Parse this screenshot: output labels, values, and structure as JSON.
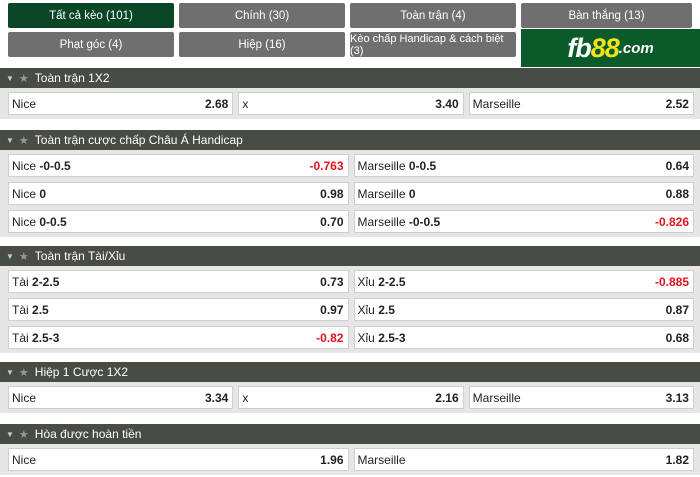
{
  "tabs": [
    {
      "label": "Tất cả kèo (101)",
      "active": true
    },
    {
      "label": "Chính (30)"
    },
    {
      "label": "Toàn trận (4)"
    },
    {
      "label": "Bàn thắng (13)"
    },
    {
      "label": "Phạt góc (4)"
    },
    {
      "label": "Hiệp (16)"
    },
    {
      "label": "Kèo chấp Handicap & cách biệt (3)"
    }
  ],
  "logo": {
    "a": "fb",
    "b": "88",
    ".com": ".com"
  },
  "colors": {
    "header": "#474c45",
    "active_tab": "#0b4727",
    "tab": "#6f6f6f",
    "negative": "#e0141e",
    "logo_bg": "#0b5a2a"
  },
  "sections": [
    {
      "title": "Toàn trận 1X2",
      "rows": [
        [
          {
            "label": "Nice",
            "line": "",
            "odds": "2.68"
          },
          {
            "label": "x",
            "line": "",
            "odds": "3.40"
          },
          {
            "label": "Marseille",
            "line": "",
            "odds": "2.52"
          }
        ]
      ]
    },
    {
      "title": "Toàn trận cược chấp Châu Á Handicap",
      "rows": [
        [
          {
            "label": "Nice",
            "line": "-0-0.5",
            "odds": "-0.763"
          },
          {
            "label": "Marseille",
            "line": "0-0.5",
            "odds": "0.64"
          }
        ],
        [
          {
            "label": "Nice",
            "line": "0",
            "odds": "0.98"
          },
          {
            "label": "Marseille",
            "line": "0",
            "odds": "0.88"
          }
        ],
        [
          {
            "label": "Nice",
            "line": "0-0.5",
            "odds": "0.70"
          },
          {
            "label": "Marseille",
            "line": "-0-0.5",
            "odds": "-0.826"
          }
        ]
      ]
    },
    {
      "title": "Toàn trận Tài/Xỉu",
      "rows": [
        [
          {
            "label": "Tài",
            "line": "2-2.5",
            "odds": "0.73"
          },
          {
            "label": "Xỉu",
            "line": "2-2.5",
            "odds": "-0.885"
          }
        ],
        [
          {
            "label": "Tài",
            "line": "2.5",
            "odds": "0.97"
          },
          {
            "label": "Xỉu",
            "line": "2.5",
            "odds": "0.87"
          }
        ],
        [
          {
            "label": "Tài",
            "line": "2.5-3",
            "odds": "-0.82"
          },
          {
            "label": "Xỉu",
            "line": "2.5-3",
            "odds": "0.68"
          }
        ]
      ]
    },
    {
      "title": "Hiệp 1 Cược 1X2",
      "rows": [
        [
          {
            "label": "Nice",
            "line": "",
            "odds": "3.34"
          },
          {
            "label": "x",
            "line": "",
            "odds": "2.16"
          },
          {
            "label": "Marseille",
            "line": "",
            "odds": "3.13"
          }
        ]
      ]
    },
    {
      "title": "Hòa được hoàn tiền",
      "rows": [
        [
          {
            "label": "Nice",
            "line": "",
            "odds": "1.96"
          },
          {
            "label": "Marseille",
            "line": "",
            "odds": "1.82"
          }
        ]
      ]
    }
  ]
}
